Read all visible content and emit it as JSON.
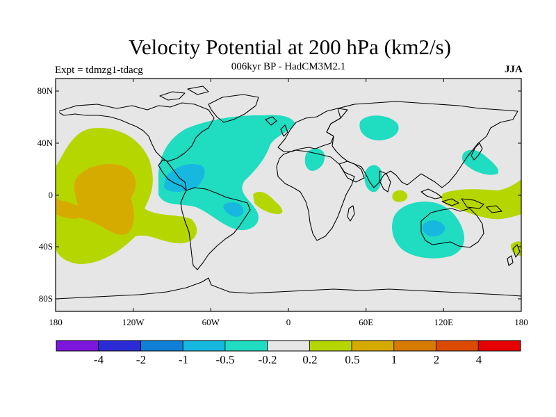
{
  "title": "Velocity Potential at 200 hPa (km2/s)",
  "subtitle": "006kyr BP - HadCM3M2.1",
  "experiment": "Expt = tdmzg1-tdacg",
  "season": "JJA",
  "y_ticks": [
    "80N",
    "40N",
    "0",
    "40S",
    "80S"
  ],
  "x_ticks": [
    "180",
    "120W",
    "60W",
    "0",
    "60E",
    "120E",
    "180"
  ],
  "colorbar": {
    "labels": [
      "-4",
      "-2",
      "-1",
      "-0.5",
      "-0.2",
      "0.2",
      "0.5",
      "1",
      "2",
      "4"
    ],
    "colors": [
      "#7d16dc",
      "#2c2cd6",
      "#0f80d8",
      "#16b8e0",
      "#20dcc0",
      "#e6e6e6",
      "#b6d600",
      "#d6ab00",
      "#d87a00",
      "#dc4a00",
      "#e60000"
    ]
  },
  "map": {
    "land_color": "#e6e6e6",
    "coastline_color": "#000000"
  }
}
